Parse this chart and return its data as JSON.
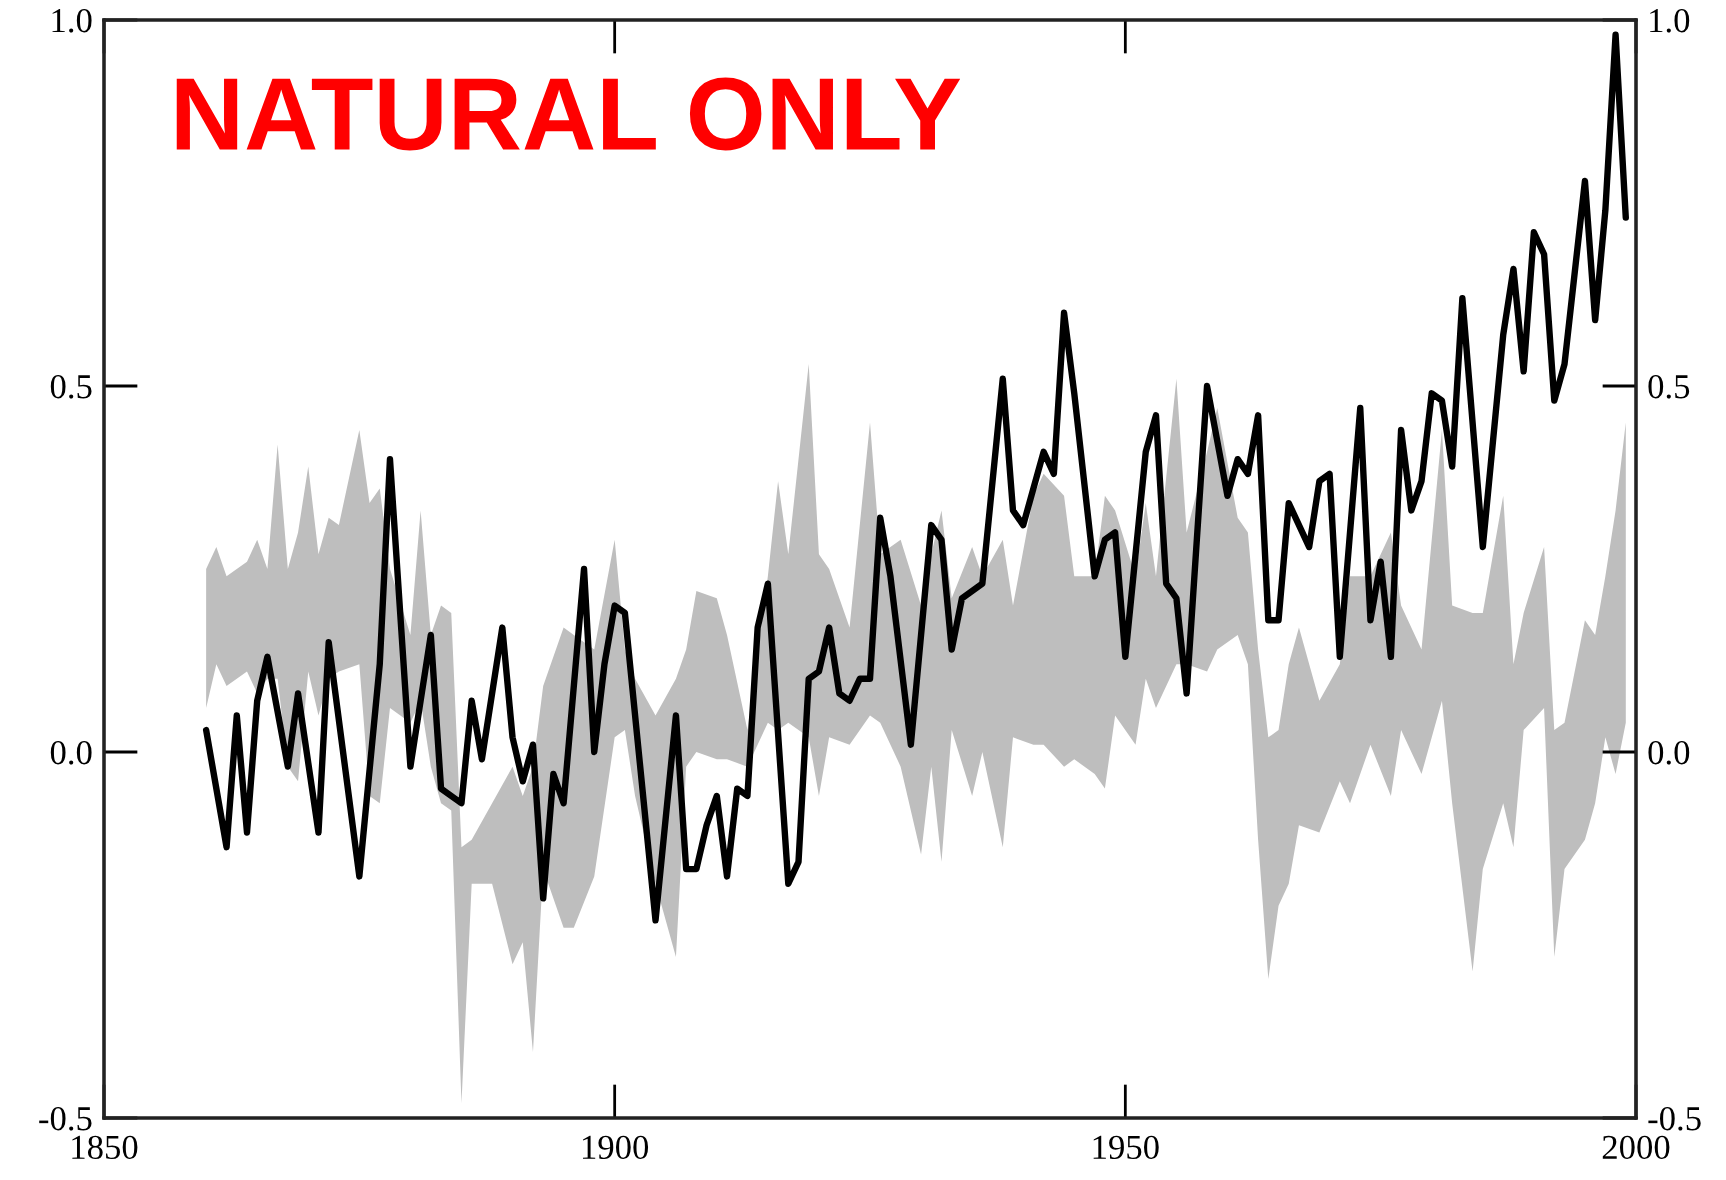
{
  "chart_data": {
    "type": "line",
    "title": "NATURAL ONLY",
    "xlim": [
      1850,
      2000
    ],
    "xticks": [
      1850,
      1900,
      1950,
      2000
    ],
    "ylim": [
      -0.5,
      1.0
    ],
    "yticks": [
      {
        "value": -0.5,
        "label": "-0.5"
      },
      {
        "value": 0.0,
        "label": "0.0"
      },
      {
        "value": 0.5,
        "label": "0.5"
      },
      {
        "value": 1.0,
        "label": "1.0"
      }
    ],
    "y2lim": [
      -0.5,
      1.0
    ],
    "y2ticks": [
      {
        "value": -0.5,
        "label": "-0.5"
      },
      {
        "value": 0.0,
        "label": "0.0"
      },
      {
        "value": 0.5,
        "label": "0.5"
      },
      {
        "value": 1.0,
        "label": "1.0"
      }
    ],
    "series": [
      {
        "type": "area",
        "color": "#bebebe",
        "x": [
          1860,
          1861,
          1862,
          1864,
          1865,
          1866,
          1867,
          1868,
          1869,
          1870,
          1871,
          1872,
          1873,
          1875,
          1876,
          1877,
          1878,
          1880,
          1881,
          1882,
          1883,
          1884,
          1885,
          1886,
          1888,
          1890,
          1891,
          1892,
          1893,
          1895,
          1896,
          1898,
          1900,
          1901,
          1902,
          1904,
          1906,
          1907,
          1908,
          1910,
          1911,
          1913,
          1915,
          1916,
          1917,
          1919,
          1920,
          1921,
          1923,
          1925,
          1926,
          1928,
          1930,
          1931,
          1932,
          1933,
          1935,
          1936,
          1938,
          1939,
          1941,
          1942,
          1944,
          1945,
          1947,
          1948,
          1949,
          1951,
          1952,
          1953,
          1955,
          1956,
          1958,
          1959,
          1961,
          1962,
          1963,
          1964,
          1965,
          1966,
          1967,
          1969,
          1971,
          1972,
          1974,
          1976,
          1977,
          1979,
          1981,
          1982,
          1984,
          1985,
          1987,
          1988,
          1989,
          1991,
          1992,
          1993,
          1995,
          1996,
          1997,
          1998,
          1999
        ],
        "values": [
          null,
          null,
          null,
          null,
          null,
          null,
          null,
          null,
          null,
          null,
          null,
          null,
          null,
          null,
          null,
          null,
          null,
          null,
          null,
          null,
          null,
          null,
          null,
          null,
          null,
          null,
          null,
          null,
          null,
          null,
          null,
          null,
          null,
          null,
          null,
          null,
          null,
          null,
          null,
          null,
          null,
          null,
          null,
          null,
          null,
          null,
          null,
          null,
          null,
          null,
          null,
          null,
          null,
          null,
          null,
          null,
          null,
          null,
          null,
          null,
          null,
          null,
          null,
          null,
          null,
          null,
          null,
          null,
          null,
          null,
          null,
          null,
          null,
          null,
          null,
          null,
          null,
          null,
          null,
          null,
          null,
          null,
          null,
          null,
          null,
          null,
          null,
          null,
          null,
          null,
          null,
          null,
          null,
          null,
          null,
          null,
          null,
          null,
          null,
          null,
          null,
          null,
          null
        ],
        "lower": [
          0.06,
          0.12,
          0.09,
          0.11,
          0.08,
          0.1,
          0.1,
          -0.02,
          -0.04,
          0.11,
          0.05,
          0.1,
          0.11,
          0.12,
          -0.06,
          -0.07,
          0.06,
          0.04,
          0.07,
          -0.02,
          -0.07,
          -0.08,
          -0.48,
          -0.18,
          -0.18,
          -0.29,
          -0.26,
          -0.41,
          -0.16,
          -0.24,
          -0.24,
          -0.17,
          0.02,
          0.03,
          -0.06,
          -0.18,
          -0.28,
          -0.02,
          0.0,
          -0.01,
          -0.01,
          -0.02,
          0.04,
          0.03,
          0.04,
          0.02,
          -0.06,
          0.02,
          0.01,
          0.05,
          0.04,
          -0.02,
          -0.14,
          -0.02,
          -0.15,
          0.03,
          -0.06,
          0.0,
          -0.13,
          0.02,
          0.01,
          0.01,
          -0.02,
          -0.01,
          -0.03,
          -0.05,
          0.05,
          0.01,
          0.1,
          0.06,
          0.12,
          0.12,
          0.11,
          0.14,
          0.16,
          0.12,
          -0.12,
          -0.31,
          -0.21,
          -0.18,
          -0.1,
          -0.11,
          -0.04,
          -0.07,
          0.01,
          -0.06,
          0.03,
          -0.03,
          0.07,
          -0.07,
          -0.3,
          -0.16,
          -0.07,
          -0.13,
          0.03,
          0.06,
          -0.28,
          -0.16,
          -0.12,
          -0.07,
          0.02,
          -0.03,
          0.04
        ],
        "upper": [
          0.25,
          0.28,
          0.24,
          0.26,
          0.29,
          0.25,
          0.42,
          0.25,
          0.3,
          0.39,
          0.27,
          0.32,
          0.31,
          0.44,
          0.34,
          0.36,
          0.25,
          0.16,
          0.33,
          0.16,
          0.2,
          0.19,
          -0.13,
          -0.12,
          -0.07,
          -0.02,
          -0.06,
          -0.02,
          0.09,
          0.17,
          0.16,
          0.14,
          0.29,
          0.14,
          0.1,
          0.05,
          0.1,
          0.14,
          0.22,
          0.21,
          0.16,
          0.03,
          0.24,
          0.37,
          0.27,
          0.53,
          0.27,
          0.25,
          0.17,
          0.45,
          0.27,
          0.29,
          0.2,
          0.27,
          0.33,
          0.21,
          0.28,
          0.24,
          0.29,
          0.2,
          0.35,
          0.38,
          0.35,
          0.24,
          0.24,
          0.35,
          0.33,
          0.24,
          0.34,
          0.24,
          0.51,
          0.3,
          0.41,
          0.47,
          0.32,
          0.3,
          0.14,
          0.02,
          0.03,
          0.12,
          0.17,
          0.07,
          0.12,
          0.24,
          0.24,
          0.3,
          0.2,
          0.14,
          0.44,
          0.2,
          0.19,
          0.19,
          0.35,
          0.12,
          0.19,
          0.28,
          0.03,
          0.04,
          0.18,
          0.16,
          0.24,
          0.33,
          0.45
        ]
      },
      {
        "color": "#000000",
        "x": [
          1860,
          1862,
          1863,
          1864,
          1865,
          1866,
          1868,
          1869,
          1871,
          1872,
          1875,
          1877,
          1878,
          1880,
          1882,
          1883,
          1885,
          1886,
          1887,
          1889,
          1890,
          1891,
          1892,
          1893,
          1894,
          1895,
          1897,
          1898,
          1899,
          1900,
          1901,
          1904,
          1906,
          1907,
          1908,
          1909,
          1910,
          1911,
          1912,
          1913,
          1914,
          1915,
          1917,
          1918,
          1919,
          1920,
          1921,
          1922,
          1923,
          1924,
          1925,
          1926,
          1927,
          1929,
          1931,
          1932,
          1933,
          1934,
          1936,
          1938,
          1939,
          1940,
          1942,
          1943,
          1944,
          1945,
          1947,
          1948,
          1949,
          1950,
          1952,
          1953,
          1954,
          1955,
          1956,
          1958,
          1960,
          1961,
          1962,
          1963,
          1964,
          1965,
          1966,
          1968,
          1969,
          1970,
          1971,
          1973,
          1974,
          1975,
          1976,
          1977,
          1978,
          1979,
          1980,
          1981,
          1982,
          1983,
          1985,
          1987,
          1988,
          1989,
          1990,
          1991,
          1992,
          1993,
          1995,
          1996,
          1997,
          1998,
          1999
        ],
        "values": [
          0.03,
          -0.13,
          0.05,
          -0.11,
          0.07,
          0.13,
          -0.02,
          0.08,
          -0.11,
          0.15,
          -0.17,
          0.12,
          0.4,
          -0.02,
          0.16,
          -0.05,
          -0.07,
          0.07,
          -0.01,
          0.17,
          0.02,
          -0.04,
          0.01,
          -0.2,
          -0.03,
          -0.07,
          0.25,
          0.0,
          0.12,
          0.2,
          0.19,
          -0.23,
          0.05,
          -0.16,
          -0.16,
          -0.1,
          -0.06,
          -0.17,
          -0.05,
          -0.06,
          0.17,
          0.23,
          -0.18,
          -0.15,
          0.1,
          0.11,
          0.17,
          0.08,
          0.07,
          0.1,
          0.1,
          0.32,
          0.24,
          0.01,
          0.31,
          0.29,
          0.14,
          0.21,
          0.23,
          0.51,
          0.33,
          0.31,
          0.41,
          0.38,
          0.6,
          0.49,
          0.24,
          0.29,
          0.3,
          0.13,
          0.41,
          0.46,
          0.23,
          0.21,
          0.08,
          0.5,
          0.35,
          0.4,
          0.38,
          0.46,
          0.18,
          0.18,
          0.34,
          0.28,
          0.37,
          0.38,
          0.13,
          0.47,
          0.18,
          0.26,
          0.13,
          0.44,
          0.33,
          0.37,
          0.49,
          0.48,
          0.39,
          0.62,
          0.28,
          0.57,
          0.66,
          0.52,
          0.71,
          0.68,
          0.48,
          0.53,
          0.78,
          0.59,
          0.74,
          0.98,
          0.73
        ]
      }
    ]
  }
}
